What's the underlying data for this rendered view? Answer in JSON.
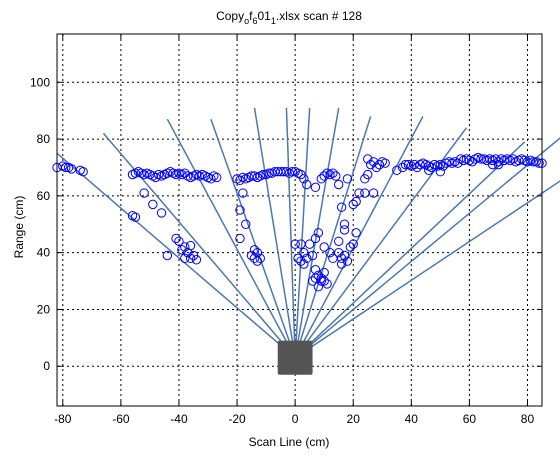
{
  "chart_data": {
    "type": "scatter",
    "title": {
      "base": "Copy",
      "sub1": "o",
      "mid1": "f",
      "sub2": "6",
      "mid2": "01",
      "sub3": "1",
      "tail": ".xlsx scan # 128"
    },
    "xlabel": "Scan Line (cm)",
    "ylabel": "Range (cm)",
    "xlim": [
      -82,
      85
    ],
    "ylim": [
      -14,
      117
    ],
    "xticks": [
      -80,
      -60,
      -40,
      -20,
      0,
      20,
      40,
      60,
      80
    ],
    "yticks": [
      0,
      20,
      40,
      60,
      80,
      100
    ],
    "grid": true,
    "colors": {
      "points": "#0000ff",
      "rays": "#4a78b0",
      "sensor": "#555555",
      "grid": "#000000"
    },
    "sensor": {
      "x": 0,
      "y": 3,
      "width": 12,
      "height": 12
    },
    "rays": {
      "origin": [
        0,
        3
      ],
      "endpoints": [
        [
          -82,
          75
        ],
        [
          -66,
          82
        ],
        [
          -44,
          87
        ],
        [
          -29,
          87
        ],
        [
          -14,
          91
        ],
        [
          -3,
          91
        ],
        [
          5,
          91
        ],
        [
          15,
          91
        ],
        [
          26,
          88
        ],
        [
          44,
          88
        ],
        [
          59,
          84
        ],
        [
          79,
          79
        ],
        [
          92,
          81
        ],
        [
          110,
          78
        ]
      ]
    },
    "points": [
      [
        -82,
        70
      ],
      [
        -80,
        70.5
      ],
      [
        -79,
        70
      ],
      [
        -78,
        70
      ],
      [
        -77,
        69.5
      ],
      [
        -74,
        69
      ],
      [
        -73,
        68.5
      ],
      [
        -56,
        67.5
      ],
      [
        -55,
        68
      ],
      [
        -54,
        68.5
      ],
      [
        -53,
        68
      ],
      [
        -52,
        67.5
      ],
      [
        -51,
        68
      ],
      [
        -50,
        67.5
      ],
      [
        -49,
        67
      ],
      [
        -48,
        66.5
      ],
      [
        -47,
        67.5
      ],
      [
        -46,
        67
      ],
      [
        -45,
        67.5
      ],
      [
        -44,
        68
      ],
      [
        -43,
        68.5
      ],
      [
        -42,
        68
      ],
      [
        -41,
        67.5
      ],
      [
        -40,
        68
      ],
      [
        -39,
        67.5
      ],
      [
        -38,
        68
      ],
      [
        -37,
        67
      ],
      [
        -36,
        66.5
      ],
      [
        -35,
        67
      ],
      [
        -34,
        67.5
      ],
      [
        -33,
        67
      ],
      [
        -32,
        67.5
      ],
      [
        -31,
        67
      ],
      [
        -30,
        66.5
      ],
      [
        -29,
        66
      ],
      [
        -28,
        67
      ],
      [
        -27,
        66.5
      ],
      [
        -56,
        53
      ],
      [
        -55,
        52.5
      ],
      [
        -52,
        61
      ],
      [
        -49,
        57
      ],
      [
        -46,
        54
      ],
      [
        -44,
        39
      ],
      [
        -41,
        45
      ],
      [
        -40,
        44
      ],
      [
        -39,
        41
      ],
      [
        -38,
        38
      ],
      [
        -37,
        40
      ],
      [
        -36,
        38
      ],
      [
        -35,
        39
      ],
      [
        -34,
        37.5
      ],
      [
        -38,
        42
      ],
      [
        -36,
        42.5
      ],
      [
        -20,
        66
      ],
      [
        -19,
        65.5
      ],
      [
        -18,
        66.5
      ],
      [
        -17,
        66
      ],
      [
        -16,
        66.5
      ],
      [
        -15,
        67
      ],
      [
        -14,
        67
      ],
      [
        -13,
        66.5
      ],
      [
        -12,
        67
      ],
      [
        -11,
        67.5
      ],
      [
        -10,
        67.5
      ],
      [
        -9,
        68
      ],
      [
        -8,
        68
      ],
      [
        -7,
        68.5
      ],
      [
        -6,
        68.5
      ],
      [
        -5,
        68.5
      ],
      [
        -4,
        68.5
      ],
      [
        -3,
        68.5
      ],
      [
        -2,
        68
      ],
      [
        -1,
        68.5
      ],
      [
        0,
        68.5
      ],
      [
        1,
        68
      ],
      [
        2,
        67.5
      ],
      [
        3,
        66
      ],
      [
        4,
        64
      ],
      [
        -19,
        55
      ],
      [
        -18,
        61
      ],
      [
        -19,
        45
      ],
      [
        -17,
        50
      ],
      [
        -15,
        39
      ],
      [
        -14,
        38
      ],
      [
        -13,
        40
      ],
      [
        -12,
        38
      ],
      [
        -14,
        41
      ],
      [
        -13,
        37
      ],
      [
        0,
        43
      ],
      [
        2,
        43
      ],
      [
        5,
        43
      ],
      [
        7,
        45
      ],
      [
        3,
        40
      ],
      [
        4,
        38
      ],
      [
        1,
        38
      ],
      [
        3,
        36
      ],
      [
        6,
        39
      ],
      [
        2,
        37
      ],
      [
        6,
        30
      ],
      [
        7,
        31
      ],
      [
        8,
        28
      ],
      [
        9,
        31
      ],
      [
        10,
        33
      ],
      [
        11,
        29
      ],
      [
        7,
        34
      ],
      [
        9,
        30
      ],
      [
        8,
        32
      ],
      [
        10,
        30
      ],
      [
        8,
        47
      ],
      [
        10,
        42
      ],
      [
        12,
        40
      ],
      [
        13,
        38
      ],
      [
        15,
        40
      ],
      [
        16,
        38
      ],
      [
        17,
        39
      ],
      [
        18,
        37
      ],
      [
        16,
        36
      ],
      [
        15,
        44
      ],
      [
        17,
        48
      ],
      [
        19,
        42
      ],
      [
        20,
        43
      ],
      [
        21,
        47
      ],
      [
        16,
        56
      ],
      [
        20,
        57
      ],
      [
        17,
        50
      ],
      [
        7,
        63
      ],
      [
        9,
        66
      ],
      [
        10,
        67
      ],
      [
        11,
        68
      ],
      [
        12,
        67.5
      ],
      [
        13,
        68
      ],
      [
        14,
        67
      ],
      [
        15,
        64
      ],
      [
        18,
        66
      ],
      [
        21,
        58
      ],
      [
        22,
        61
      ],
      [
        24,
        66
      ],
      [
        25,
        67.5
      ],
      [
        24,
        61
      ],
      [
        25,
        73
      ],
      [
        26,
        71
      ],
      [
        27,
        72
      ],
      [
        28,
        70
      ],
      [
        29,
        71
      ],
      [
        30,
        72
      ],
      [
        31,
        71.5
      ],
      [
        27,
        61
      ],
      [
        35,
        69
      ],
      [
        37,
        70
      ],
      [
        38,
        71
      ],
      [
        39,
        71
      ],
      [
        40,
        70.5
      ],
      [
        41,
        71
      ],
      [
        42,
        70
      ],
      [
        43,
        71
      ],
      [
        44,
        71.5
      ],
      [
        45,
        71
      ],
      [
        46,
        70.5
      ],
      [
        47,
        70
      ],
      [
        48,
        71
      ],
      [
        49,
        70.5
      ],
      [
        50,
        71
      ],
      [
        51,
        70.5
      ],
      [
        52,
        71.5
      ],
      [
        53,
        72
      ],
      [
        54,
        71.5
      ],
      [
        55,
        72
      ],
      [
        56,
        71.5
      ],
      [
        57,
        73
      ],
      [
        58,
        72.5
      ],
      [
        59,
        73
      ],
      [
        60,
        72.5
      ],
      [
        61,
        72
      ],
      [
        62,
        73
      ],
      [
        63,
        73.5
      ],
      [
        64,
        73
      ],
      [
        65,
        73
      ],
      [
        66,
        72.5
      ],
      [
        67,
        73
      ],
      [
        68,
        72.5
      ],
      [
        69,
        73
      ],
      [
        70,
        72
      ],
      [
        71,
        73
      ],
      [
        72,
        72.5
      ],
      [
        73,
        73
      ],
      [
        74,
        72.5
      ],
      [
        75,
        73
      ],
      [
        76,
        72
      ],
      [
        77,
        72.5
      ],
      [
        78,
        73
      ],
      [
        79,
        72.5
      ],
      [
        80,
        72
      ],
      [
        81,
        72.5
      ],
      [
        82,
        72
      ],
      [
        83,
        72
      ],
      [
        84,
        71.5
      ],
      [
        85,
        71.5
      ],
      [
        46,
        69
      ],
      [
        50,
        68.5
      ],
      [
        68,
        71
      ],
      [
        70,
        71
      ]
    ]
  }
}
